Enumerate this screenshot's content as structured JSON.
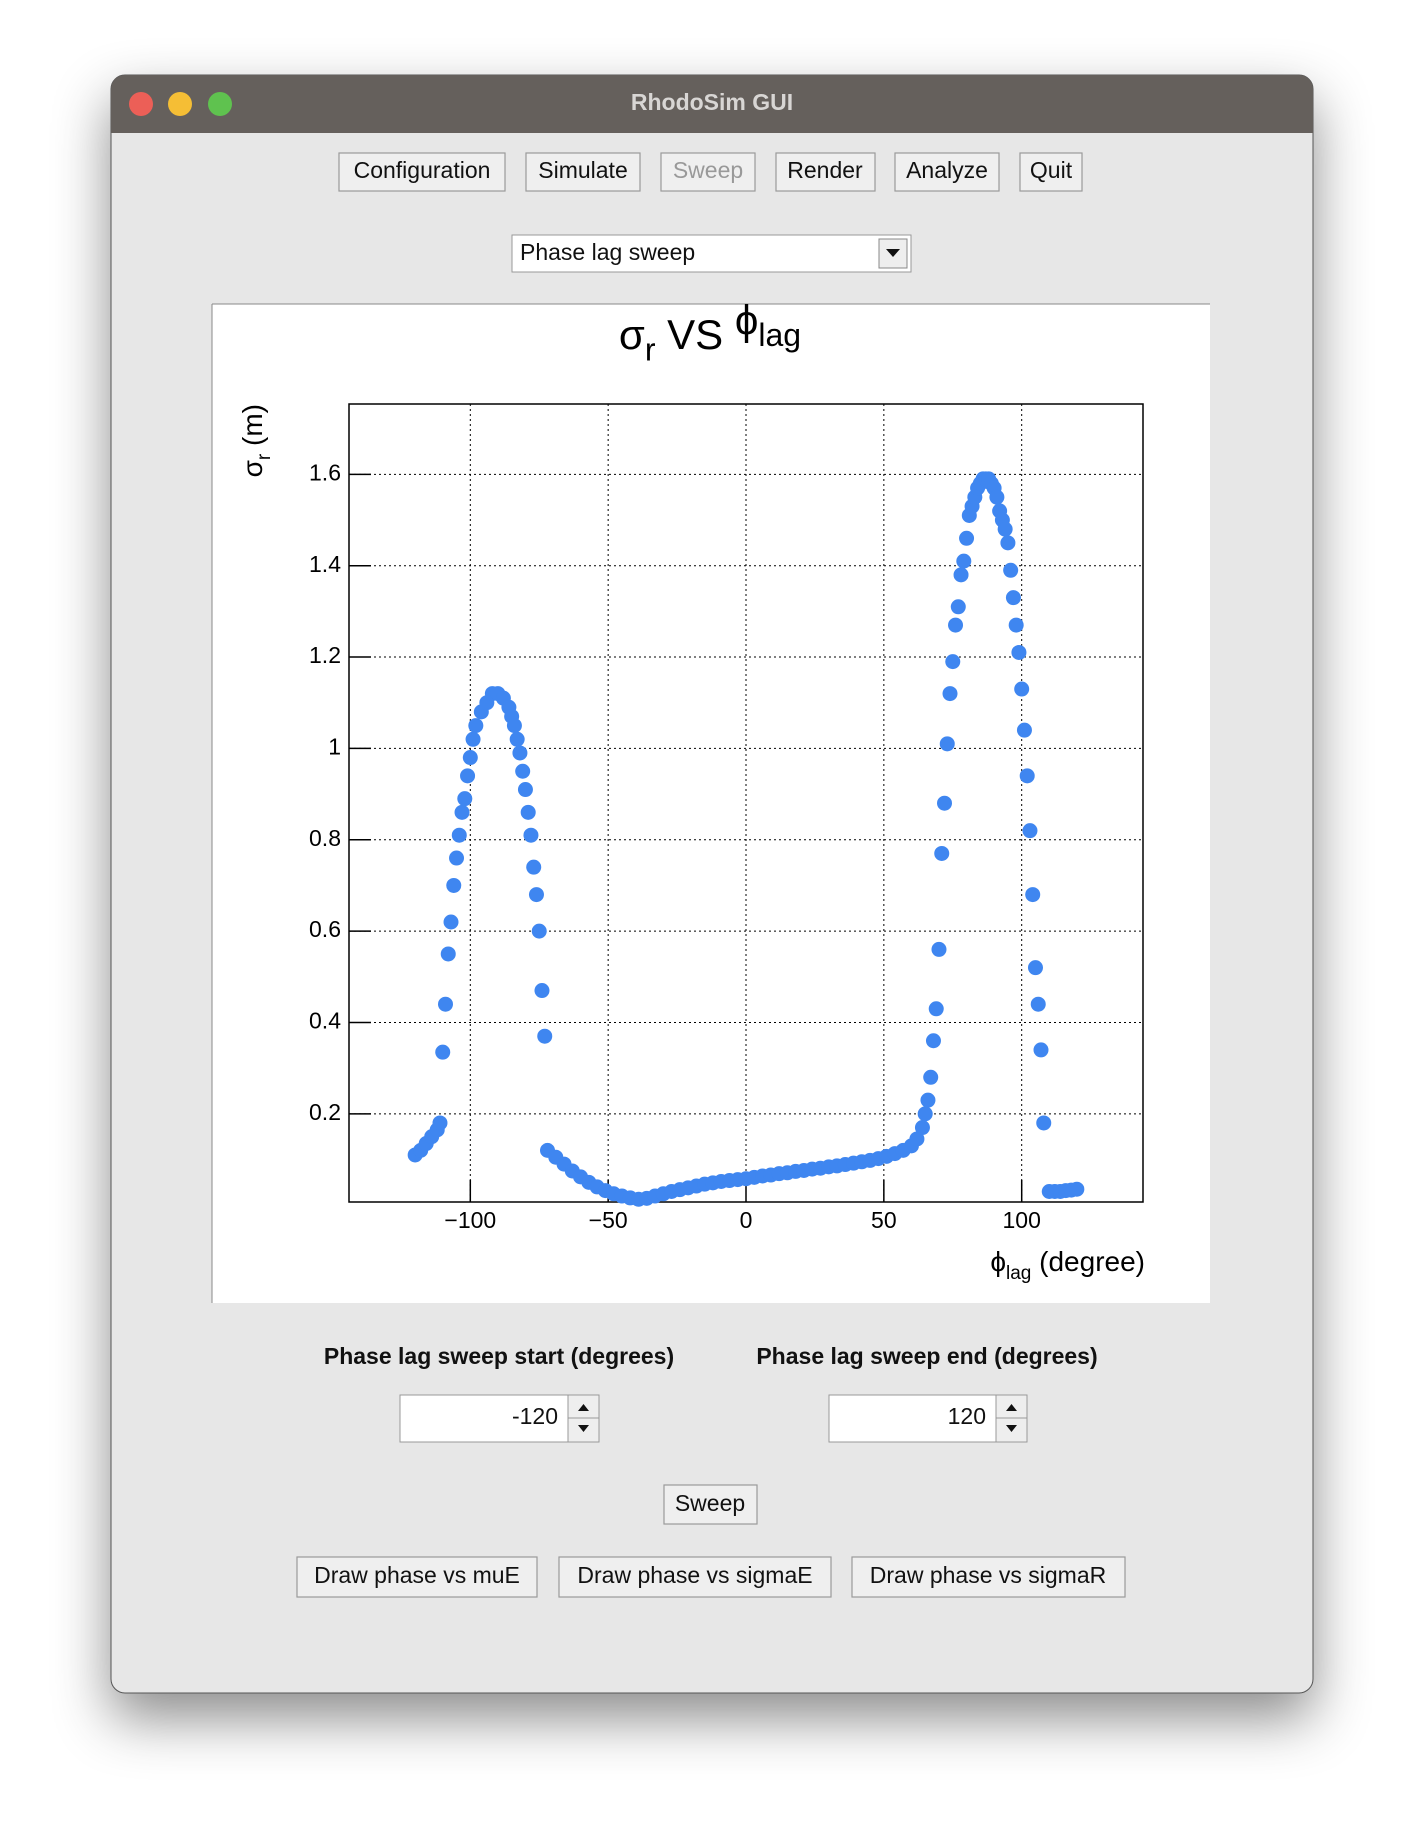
{
  "window": {
    "title": "RhodoSim GUI"
  },
  "toolbar": {
    "buttons": [
      "Configuration",
      "Simulate",
      "Sweep",
      "Render",
      "Analyze",
      "Quit"
    ]
  },
  "dropdown": {
    "selected": "Phase lag sweep"
  },
  "chart_data": {
    "type": "scatter",
    "title": [
      "σ",
      "r",
      " VS ",
      "ϕ",
      "lag"
    ],
    "x_label": [
      "ϕ",
      "lag",
      " (degree)"
    ],
    "y_label": [
      "σ",
      "r",
      " (m)"
    ],
    "color": "#3f86f0",
    "grid": true,
    "xlim": [
      -144,
      144
    ],
    "ylim": [
      0.007,
      1.754
    ],
    "xticks": [
      {
        "value": -100,
        "label": "−100"
      },
      {
        "value": -50,
        "label": "−50"
      },
      0,
      50,
      100
    ],
    "yticks": [
      0.2,
      0.4,
      0.6,
      0.8,
      1,
      1.2,
      1.4,
      1.6
    ],
    "x": [
      -120,
      -118,
      -116,
      -114,
      -112,
      -111,
      -110,
      -109,
      -108,
      -107,
      -106,
      -105,
      -104,
      -103,
      -102,
      -101,
      -100,
      -99,
      -98,
      -96,
      -94,
      -92,
      -90,
      -88,
      -86,
      -85,
      -84,
      -83,
      -82,
      -81,
      -80,
      -79,
      -78,
      -77,
      -76,
      -75,
      -74,
      -73,
      -72,
      -69,
      -66,
      -63,
      -60,
      -57,
      -54,
      -51,
      -48,
      -45,
      -42,
      -39,
      -36,
      -33,
      -30,
      -27,
      -24,
      -21,
      -18,
      -15,
      -12,
      -9,
      -6,
      -3,
      0,
      3,
      6,
      9,
      12,
      15,
      18,
      21,
      24,
      27,
      30,
      33,
      36,
      39,
      42,
      45,
      48,
      51,
      54,
      57,
      60,
      62,
      64,
      65,
      66,
      67,
      68,
      69,
      70,
      71,
      72,
      73,
      74,
      75,
      76,
      77,
      78,
      79,
      80,
      81,
      82,
      83,
      84,
      85,
      86,
      87,
      88,
      89,
      90,
      91,
      92,
      93,
      94,
      95,
      96,
      97,
      98,
      99,
      100,
      101,
      102,
      103,
      104,
      105,
      106,
      107,
      108,
      110,
      112,
      114,
      116,
      118,
      120
    ],
    "values": [
      0.11,
      0.12,
      0.135,
      0.15,
      0.165,
      0.18,
      0.335,
      0.44,
      0.55,
      0.62,
      0.7,
      0.76,
      0.81,
      0.86,
      0.89,
      0.94,
      0.98,
      1.02,
      1.05,
      1.08,
      1.1,
      1.12,
      1.12,
      1.11,
      1.09,
      1.07,
      1.05,
      1.02,
      0.99,
      0.95,
      0.91,
      0.86,
      0.81,
      0.74,
      0.68,
      0.6,
      0.47,
      0.37,
      0.12,
      0.105,
      0.09,
      0.075,
      0.062,
      0.05,
      0.04,
      0.032,
      0.025,
      0.02,
      0.016,
      0.013,
      0.015,
      0.02,
      0.025,
      0.03,
      0.034,
      0.038,
      0.042,
      0.046,
      0.049,
      0.052,
      0.054,
      0.056,
      0.058,
      0.061,
      0.064,
      0.066,
      0.069,
      0.071,
      0.074,
      0.076,
      0.079,
      0.081,
      0.084,
      0.086,
      0.089,
      0.092,
      0.095,
      0.098,
      0.102,
      0.107,
      0.113,
      0.12,
      0.13,
      0.145,
      0.17,
      0.2,
      0.23,
      0.28,
      0.36,
      0.43,
      0.56,
      0.77,
      0.88,
      1.01,
      1.12,
      1.19,
      1.27,
      1.31,
      1.38,
      1.41,
      1.46,
      1.51,
      1.53,
      1.55,
      1.57,
      1.58,
      1.59,
      1.59,
      1.59,
      1.58,
      1.57,
      1.55,
      1.52,
      1.5,
      1.48,
      1.45,
      1.39,
      1.33,
      1.27,
      1.21,
      1.13,
      1.04,
      0.94,
      0.82,
      0.68,
      0.52,
      0.44,
      0.34,
      0.18,
      0.03,
      0.03,
      0.03,
      0.032,
      0.033,
      0.035
    ]
  },
  "sweep": {
    "start_label": "Phase lag sweep start (degrees)",
    "end_label": "Phase lag sweep end (degrees)",
    "start_value": -120,
    "end_value": 120,
    "button": "Sweep"
  },
  "draw_buttons": [
    "Draw phase vs muE",
    "Draw phase vs sigmaE",
    "Draw phase vs sigmaR"
  ]
}
